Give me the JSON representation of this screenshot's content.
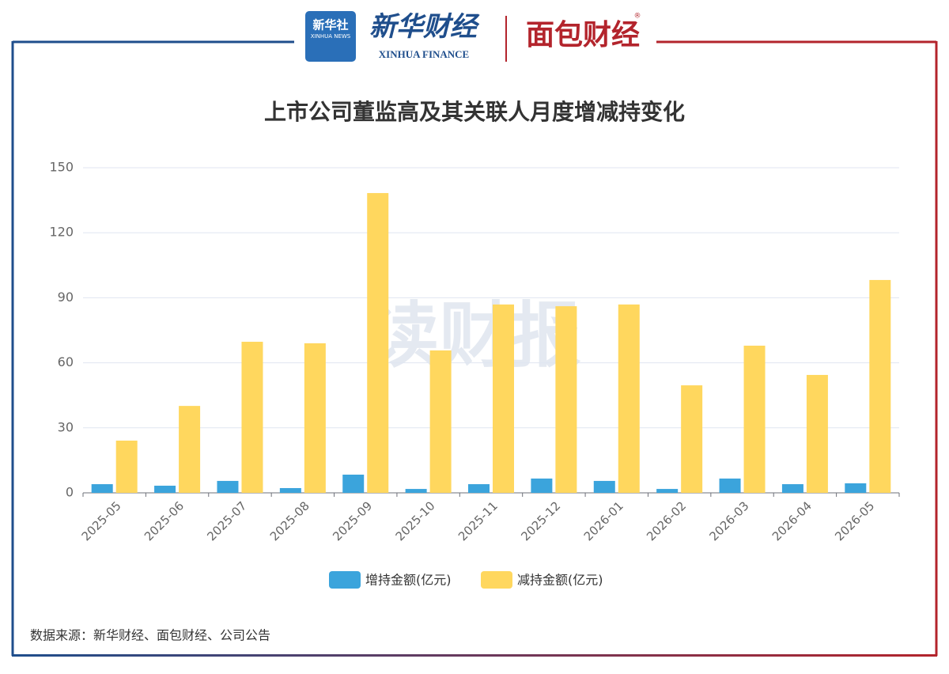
{
  "header": {
    "xinhua_logo": "新华社",
    "xinhua_logo_en": "XINHUA NEWS",
    "finance_logo": "新华财经",
    "finance_logo_en": "XINHUA FINANCE",
    "mianbao_logo": "面包财经",
    "registered": "®"
  },
  "watermark": "读财报",
  "source": "数据来源：新华财经、面包财经、公司公告",
  "chart_data": {
    "type": "bar",
    "title": "上市公司董监高及其关联人月度增减持变化",
    "categories": [
      "2025-05",
      "2025-06",
      "2025-07",
      "2025-08",
      "2025-09",
      "2025-10",
      "2025-11",
      "2025-12",
      "2026-01",
      "2026-02",
      "2026-03",
      "2026-04",
      "2026-05"
    ],
    "series": [
      {
        "name": "增持金额(亿元)",
        "color": "#3ba4dc",
        "values": [
          4.0,
          3.3,
          5.5,
          2.2,
          8.4,
          1.8,
          4.0,
          6.6,
          5.5,
          1.8,
          6.6,
          4.0,
          4.4
        ]
      },
      {
        "name": "减持金额(亿元)",
        "color": "#ffd75e",
        "values": [
          24.1,
          40.1,
          69.7,
          69.0,
          138.3,
          65.7,
          86.9,
          86.1,
          86.9,
          49.6,
          67.9,
          54.4,
          98.2
        ]
      }
    ],
    "ylim": [
      0,
      150
    ],
    "yticks": [
      0,
      30,
      60,
      90,
      120,
      150
    ],
    "grid": true,
    "legend": "bottom"
  }
}
